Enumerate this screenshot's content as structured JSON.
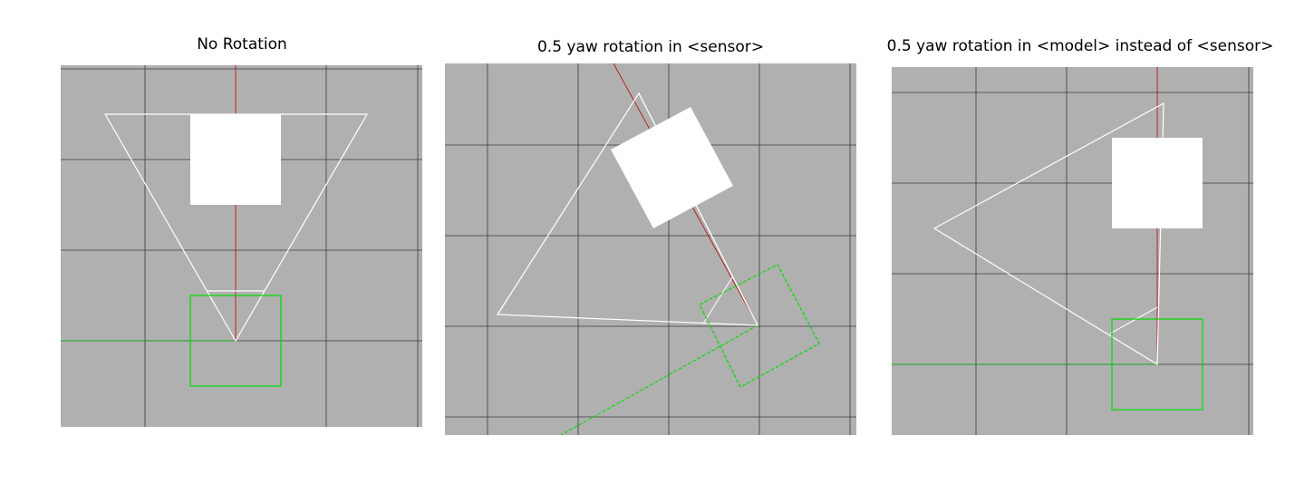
{
  "panels": [
    {
      "title": "No Rotation"
    },
    {
      "title": "0.5 yaw rotation in <sensor>"
    },
    {
      "title": "0.5 yaw rotation in <model> instead of <sensor>"
    }
  ],
  "colors": {
    "background": "#b0b0b0",
    "grid": "#3a3a3a",
    "x_axis": "#00c000",
    "y_axis": "#c00000",
    "sensor_cone": "#ffffff",
    "model_box": "#00dd00",
    "object": "#ffffff"
  }
}
